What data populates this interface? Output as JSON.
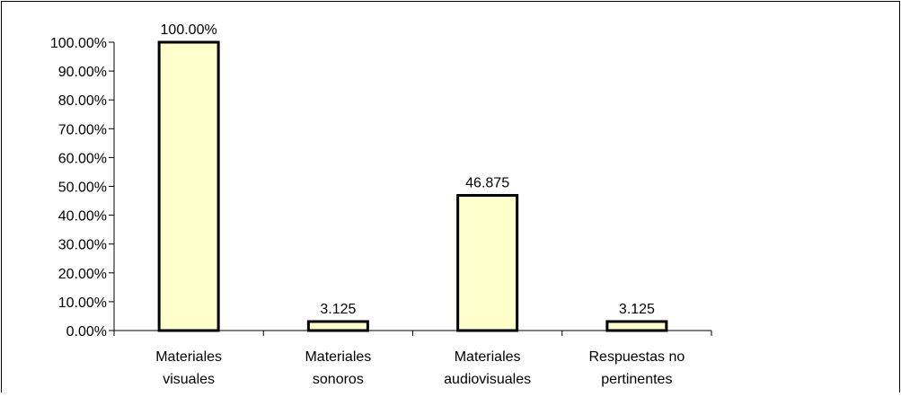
{
  "chart_data": {
    "type": "bar",
    "categories": [
      [
        "Materiales",
        "visuales"
      ],
      [
        "Materiales",
        "sonoros"
      ],
      [
        "Materiales",
        "audiovisuales"
      ],
      [
        "Respuestas no",
        "pertinentes"
      ]
    ],
    "values": [
      100,
      3.125,
      46.875,
      3.125
    ],
    "data_labels": [
      "100.00%",
      "3.125",
      "46.875",
      "3.125"
    ],
    "yticks": [
      "0.00%",
      "10.00%",
      "20.00%",
      "30.00%",
      "40.00%",
      "50.00%",
      "60.00%",
      "70.00%",
      "80.00%",
      "90.00%",
      "100.00%"
    ],
    "ylim": [
      0,
      100
    ],
    "title": "",
    "xlabel": "",
    "ylabel": "",
    "grid": false,
    "legend": "none",
    "colors": {
      "bar_fill": "#FFFFCC",
      "bar_stroke": "#000000",
      "axis": "#000000",
      "frame": "#000000"
    }
  }
}
